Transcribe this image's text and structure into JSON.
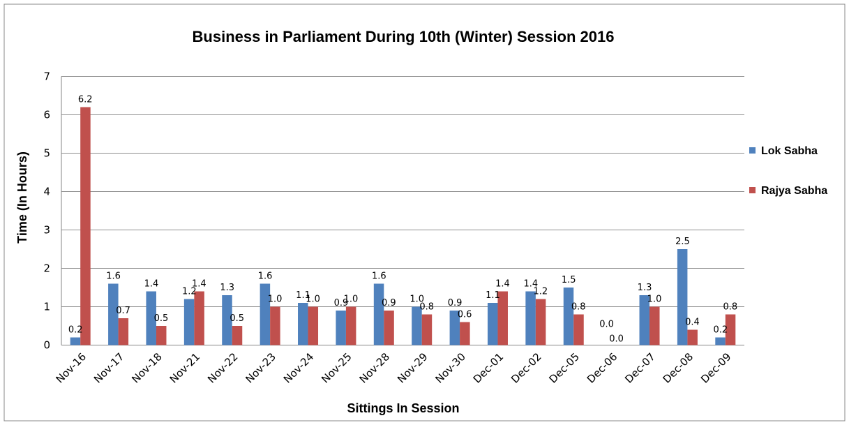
{
  "chart_data": {
    "type": "bar",
    "title": "Business in Parliament During 10th (Winter) Session 2016",
    "xlabel": "Sittings In Session",
    "ylabel": "Time (In Hours)",
    "ylim": [
      0,
      7
    ],
    "yticks": [
      "0",
      "1",
      "2",
      "3",
      "4",
      "5",
      "6",
      "7"
    ],
    "grid": true,
    "legend_position": "right",
    "categories": [
      "Nov-16",
      "Nov-17",
      "Nov-18",
      "Nov-21",
      "Nov-22",
      "Nov-23",
      "Nov-24",
      "Nov-25",
      "Nov-28",
      "Nov-29",
      "Nov-30",
      "Dec-01",
      "Dec-02",
      "Dec-05",
      "Dec-06",
      "Dec-07",
      "Dec-08",
      "Dec-09"
    ],
    "series": [
      {
        "name": "Lok Sabha",
        "color": "#4F81BD",
        "values": [
          0.2,
          1.6,
          1.4,
          1.2,
          1.3,
          1.6,
          1.1,
          0.9,
          1.6,
          1.0,
          0.9,
          1.1,
          1.4,
          1.5,
          0.0,
          1.3,
          2.5,
          0.2
        ],
        "labels": [
          "0.2",
          "1.6",
          "1.4",
          "1.2",
          "1.3",
          "1.6",
          "1.1",
          "0.9",
          "1.6",
          "1.0",
          "0.9",
          "1.1",
          "1.4",
          "1.5",
          "0.0",
          "1.3",
          "2.5",
          "0.2"
        ]
      },
      {
        "name": "Rajya Sabha",
        "color": "#C0504D",
        "values": [
          6.2,
          0.7,
          0.5,
          1.4,
          0.5,
          1.0,
          1.0,
          1.0,
          0.9,
          0.8,
          0.6,
          1.4,
          1.2,
          0.8,
          0.0,
          1.0,
          0.4,
          0.8
        ],
        "labels": [
          "6.2",
          "0.7",
          "0.5",
          "1.4",
          "0.5",
          "1.0",
          "1.0",
          "1.0",
          "0.9",
          "0.8",
          "0.6",
          "1.4",
          "1.2",
          "0.8",
          "0.0",
          "1.0",
          "0.4",
          "0.8"
        ]
      }
    ]
  }
}
